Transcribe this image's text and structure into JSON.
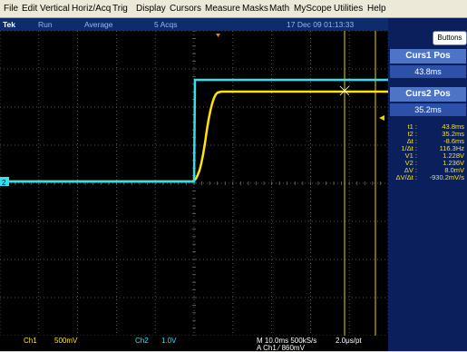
{
  "menu": [
    "File",
    "Edit",
    "Vertical",
    "Horiz/Acq",
    "Trig",
    "Display",
    "Cursors",
    "Measure",
    "Masks",
    "Math",
    "MyScope",
    "Utilities",
    "Help"
  ],
  "status": {
    "brand": "Tek",
    "run": "Run",
    "mode": "Average",
    "acqs": "5 Acqs",
    "datetime": "17 Dec 09 01:13:33"
  },
  "buttons_label": "Buttons",
  "curs1": {
    "title": "Curs1 Pos",
    "value": "43.8ms"
  },
  "curs2": {
    "title": "Curs2 Pos",
    "value": "35.2ms"
  },
  "readout": [
    {
      "label": "t1 :",
      "value": "43.8ms"
    },
    {
      "label": "t2 :",
      "value": "35.2ms"
    },
    {
      "label": "Δt :",
      "value": "-8.6ms"
    },
    {
      "label": "1/Δt :",
      "value": "116.3Hz"
    },
    {
      "label": "V1 :",
      "value": "1.228V"
    },
    {
      "label": "V2 :",
      "value": "1.236V"
    },
    {
      "label": "ΔV :",
      "value": "8.0mV"
    },
    {
      "label": "ΔV/Δt :",
      "value": "-930.2mV/s"
    }
  ],
  "channel_marker": "2",
  "bottom": {
    "ch1_label": "Ch1",
    "ch1_scale": "500mV",
    "ch2_label": "Ch2",
    "ch2_scale": "1.0V",
    "timebase": "M 10.0ms 500kS/s",
    "sample": "2.0μs/pt",
    "trigger": "A  Ch1  ⁄  860mV"
  },
  "colors": {
    "ch1": "#ffe600",
    "ch2": "#33e0f0",
    "grid": "#6a6a6a",
    "background": "#000000"
  }
}
